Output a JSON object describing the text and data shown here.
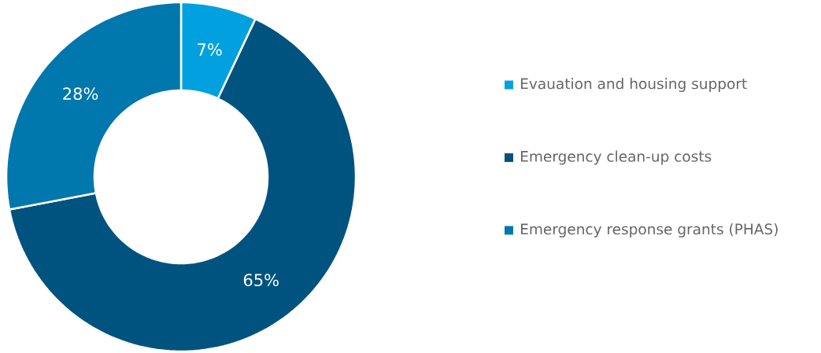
{
  "chart_data": {
    "type": "donut",
    "categories": [
      "Evauation and housing support",
      "Emergency clean-up costs",
      "Emergency response grants (PHAS)"
    ],
    "values": [
      7,
      65,
      28
    ],
    "value_labels": [
      "7%",
      "65%",
      "28%"
    ],
    "colors": [
      "#00a1de",
      "#00537f",
      "#0077ad"
    ],
    "legend": "right"
  }
}
